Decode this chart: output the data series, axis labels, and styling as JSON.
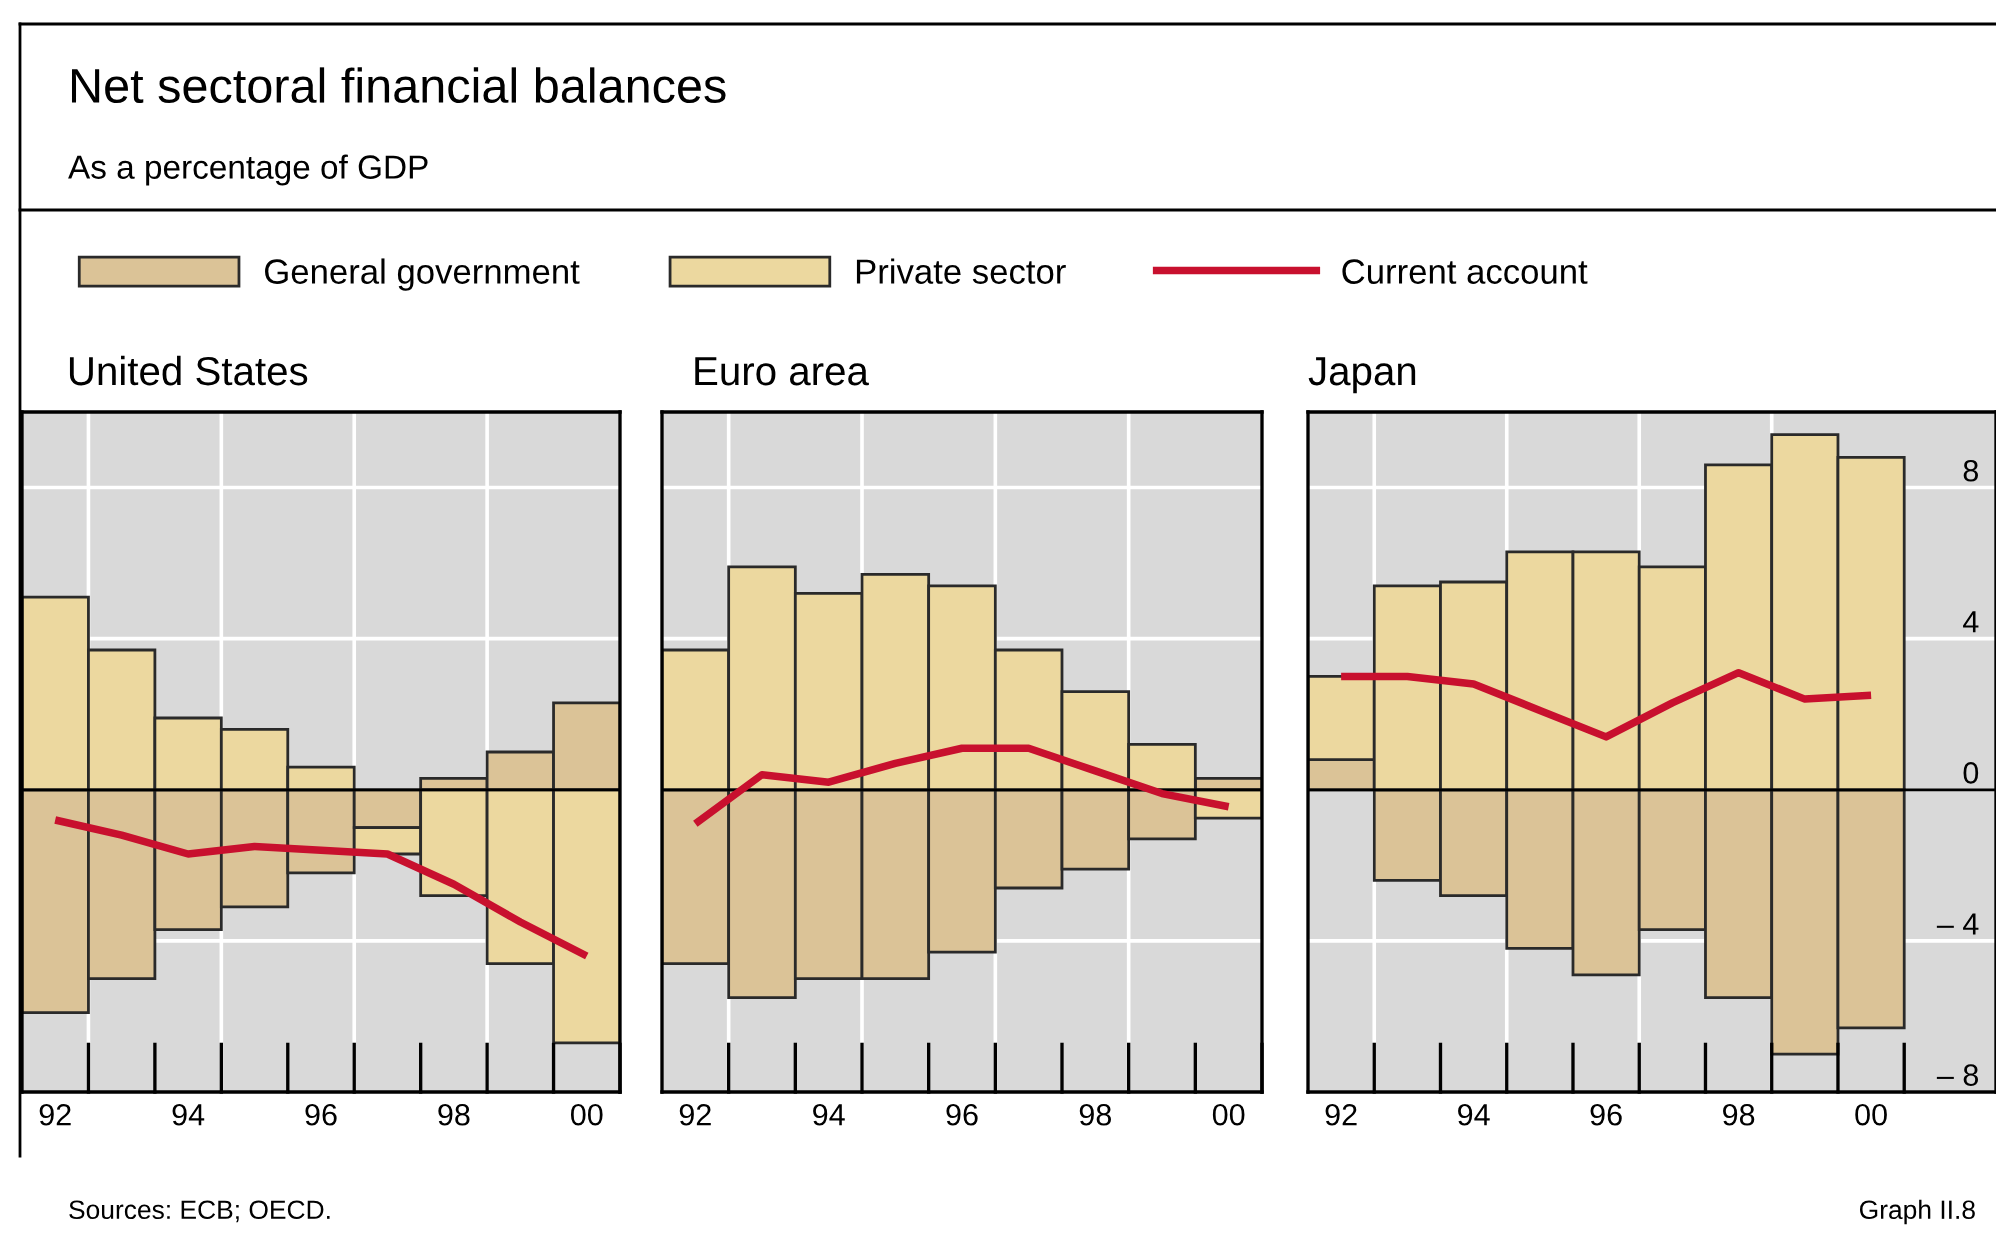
{
  "chart_data": [
    {
      "type": "other",
      "title": "Net sectoral financial balances",
      "subtitle": "As a percentage of GDP",
      "annotations": [
        "Sources: ECB; OECD.",
        "Graph II.8"
      ]
    },
    {
      "type": "bar",
      "title": "United States",
      "stacked": true,
      "categories": [
        "92",
        null,
        "94",
        null,
        "96",
        null,
        "98",
        null,
        "00"
      ],
      "ylim": [
        -8,
        10
      ],
      "yticks": [
        -4,
        4,
        8
      ],
      "grid": true,
      "tick_labels": "x",
      "legend": "top",
      "line_style": "solid",
      "marker": "none",
      "series": [
        {
          "name": "General government",
          "color": "#dbc397",
          "values": [
            -5.9,
            -5.0,
            -3.7,
            -3.1,
            -2.2,
            -1.0,
            0.3,
            1.0,
            2.3
          ]
        },
        {
          "name": "Private sector",
          "color": "#ecd89f",
          "values": [
            5.1,
            3.7,
            1.9,
            1.6,
            0.6,
            -0.7,
            -2.8,
            -4.6,
            -6.7
          ]
        },
        {
          "name": "Current account",
          "type": "line",
          "color": "#c8102e",
          "values": [
            -0.8,
            -1.2,
            -1.7,
            -1.5,
            -1.6,
            -1.7,
            -2.5,
            -3.5,
            -4.4
          ]
        }
      ]
    },
    {
      "type": "bar",
      "title": "Euro area",
      "stacked": true,
      "categories": [
        "92",
        null,
        "94",
        null,
        "96",
        null,
        "98",
        null,
        "00"
      ],
      "ylim": [
        -8,
        10
      ],
      "yticks": [
        -4,
        4,
        8
      ],
      "grid": true,
      "tick_labels": "x",
      "line_style": "solid",
      "marker": "none",
      "series": [
        {
          "color": "#dbc397",
          "values": [
            -4.6,
            -5.5,
            -5.0,
            -5.0,
            -4.3,
            -2.6,
            -2.1,
            -1.3,
            0.3
          ]
        },
        {
          "color": "#ecd89f",
          "values": [
            3.7,
            5.9,
            5.2,
            5.7,
            5.4,
            3.7,
            2.6,
            1.2,
            -0.75
          ]
        },
        {
          "type": "line",
          "color": "#c8102e",
          "values": [
            -0.9,
            0.4,
            0.2,
            0.7,
            1.1,
            1.1,
            0.5,
            -0.1,
            -0.45
          ]
        }
      ]
    },
    {
      "type": "bar",
      "title": "Japan",
      "stacked": true,
      "categories": [
        "92",
        null,
        "94",
        null,
        "96",
        null,
        "98",
        null,
        "00"
      ],
      "ylim": [
        -8,
        10
      ],
      "yticks": [
        {
          "value": -8,
          "label": "– 8"
        },
        {
          "value": -4,
          "label": "– 4"
        },
        0,
        4,
        8
      ],
      "grid": true,
      "line_style": "solid",
      "marker": "none",
      "series": [
        {
          "color": "#dbc397",
          "values": [
            0.8,
            -2.4,
            -2.8,
            -4.2,
            -4.9,
            -3.7,
            -5.5,
            -7.0,
            -6.3
          ]
        },
        {
          "color": "#ecd89f",
          "values": [
            2.2,
            5.4,
            5.5,
            6.3,
            6.3,
            5.9,
            8.6,
            9.4,
            8.8
          ]
        },
        {
          "type": "line",
          "color": "#c8102e",
          "values": [
            3.0,
            3.0,
            2.8,
            2.1,
            1.4,
            2.3,
            3.1,
            2.4,
            2.5
          ]
        }
      ]
    }
  ]
}
